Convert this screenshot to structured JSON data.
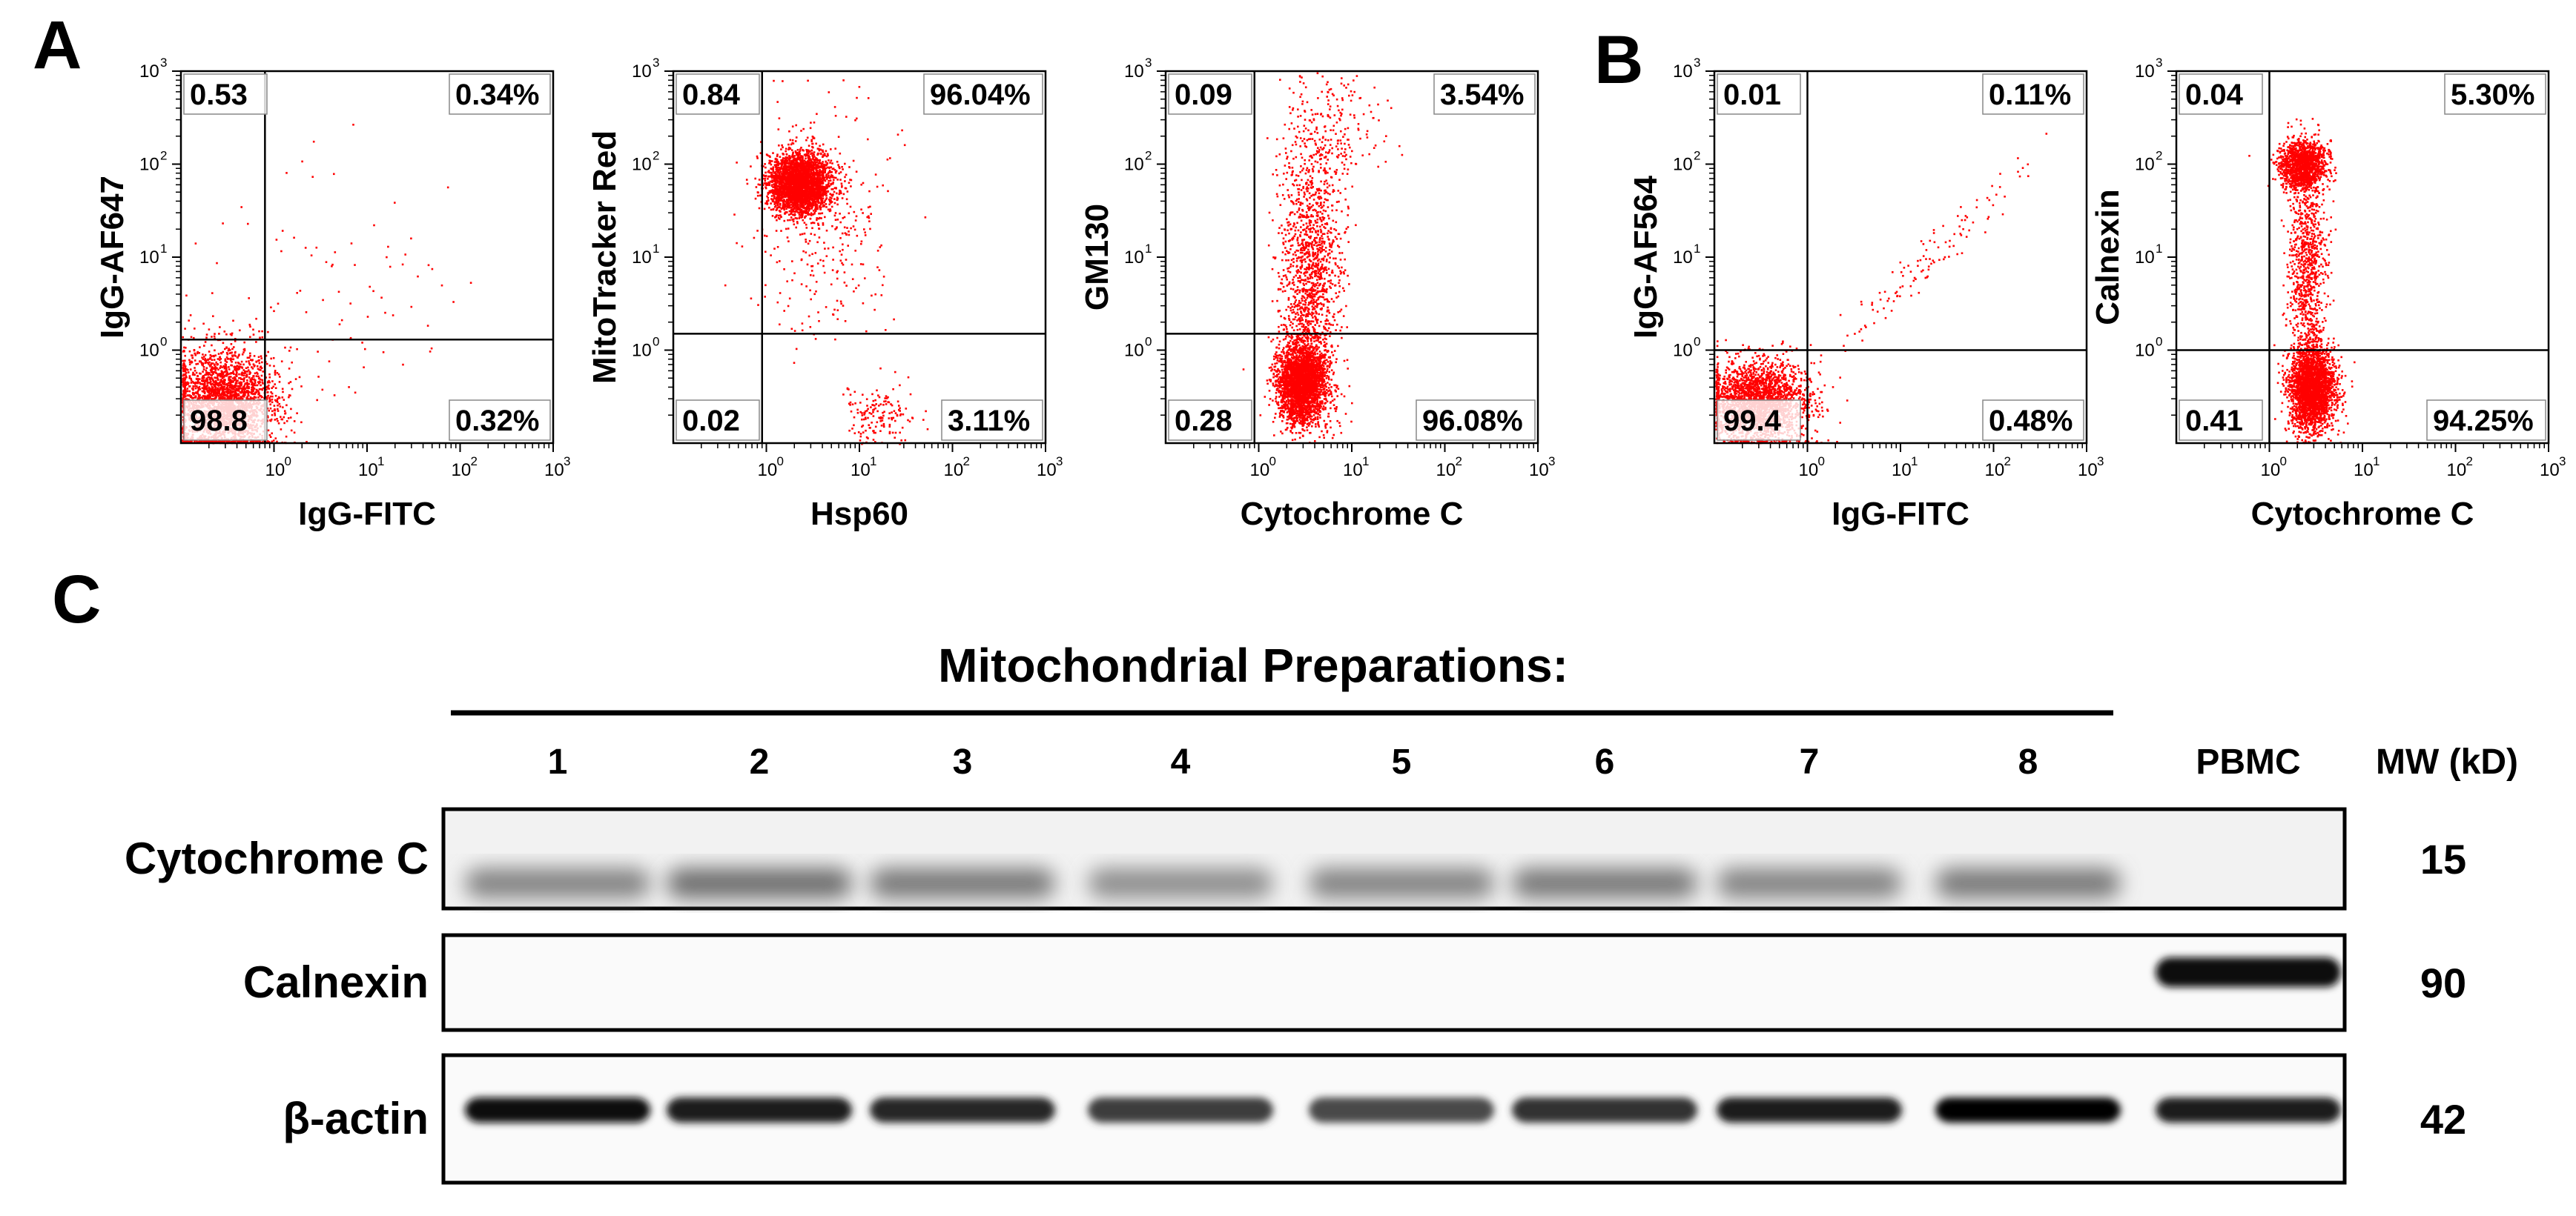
{
  "panels": {
    "a": "A",
    "b": "B",
    "c": "C"
  },
  "chart_data": [
    {
      "type": "scatter",
      "panel": "A",
      "xlabel": "IgG-FITC",
      "ylabel": "IgG-AF647",
      "scale": "log10",
      "xlim": [
        0.1,
        1000
      ],
      "ylim": [
        0.1,
        1000
      ],
      "quadrant_gate": {
        "x": 0.8,
        "y": 1.3
      },
      "quadrants": {
        "upper_left": "0.53",
        "upper_right": "0.34%",
        "lower_left": "98.8",
        "lower_right": "0.32%"
      },
      "color": "#ff0000"
    },
    {
      "type": "scatter",
      "panel": "A",
      "xlabel": "Hsp60",
      "ylabel": "MitoTracker Red",
      "scale": "log10",
      "xlim": [
        0.1,
        1000
      ],
      "ylim": [
        0.1,
        1000
      ],
      "quadrant_gate": {
        "x": 0.9,
        "y": 1.5
      },
      "quadrants": {
        "upper_left": "0.84",
        "upper_right": "96.04%",
        "lower_left": "0.02",
        "lower_right": "3.11%"
      },
      "color": "#ff0000"
    },
    {
      "type": "scatter",
      "panel": "A",
      "xlabel": "Cytochrome C",
      "ylabel": "GM130",
      "scale": "log10",
      "xlim": [
        0.1,
        1000
      ],
      "ylim": [
        0.1,
        1000
      ],
      "quadrant_gate": {
        "x": 0.9,
        "y": 1.5
      },
      "quadrants": {
        "upper_left": "0.09",
        "upper_right": "3.54%",
        "lower_left": "0.28",
        "lower_right": "96.08%"
      },
      "color": "#ff0000"
    },
    {
      "type": "scatter",
      "panel": "B",
      "xlabel": "IgG-FITC",
      "ylabel": "IgG-AF564",
      "scale": "log10",
      "xlim": [
        0.1,
        1000
      ],
      "ylim": [
        0.1,
        1000
      ],
      "quadrant_gate": {
        "x": 1.0,
        "y": 1.0
      },
      "quadrants": {
        "upper_left": "0.01",
        "upper_right": "0.11%",
        "lower_left": "99.4",
        "lower_right": "0.48%"
      },
      "color": "#ff0000"
    },
    {
      "type": "scatter",
      "panel": "B",
      "xlabel": "Cytochrome C",
      "ylabel": "Calnexin",
      "scale": "log10",
      "xlim": [
        0.1,
        1000
      ],
      "ylim": [
        0.1,
        1000
      ],
      "quadrant_gate": {
        "x": 1.0,
        "y": 1.0
      },
      "quadrants": {
        "upper_left": "0.04",
        "upper_right": "5.30%",
        "lower_left": "0.41",
        "lower_right": "94.25%"
      },
      "color": "#ff0000"
    }
  ],
  "ticks": {
    "base": "10",
    "exponents": [
      "0",
      "1",
      "2",
      "3"
    ]
  },
  "western": {
    "title": "Mitochondrial Preparations:",
    "lanes": [
      "1",
      "2",
      "3",
      "4",
      "5",
      "6",
      "7",
      "8",
      "PBMC"
    ],
    "mw_header": "MW (kD)",
    "blots": [
      {
        "protein": "Cytochrome C",
        "mw": "15",
        "intensity": [
          0.45,
          0.55,
          0.5,
          0.4,
          0.45,
          0.5,
          0.45,
          0.5,
          0.0
        ]
      },
      {
        "protein": "Calnexin",
        "mw": "90",
        "intensity": [
          0.0,
          0.0,
          0.0,
          0.0,
          0.0,
          0.0,
          0.0,
          0.0,
          0.95
        ]
      },
      {
        "protein": "β-actin",
        "mw": "42",
        "intensity": [
          0.95,
          0.9,
          0.85,
          0.75,
          0.7,
          0.8,
          0.9,
          1.0,
          0.9
        ]
      }
    ]
  }
}
